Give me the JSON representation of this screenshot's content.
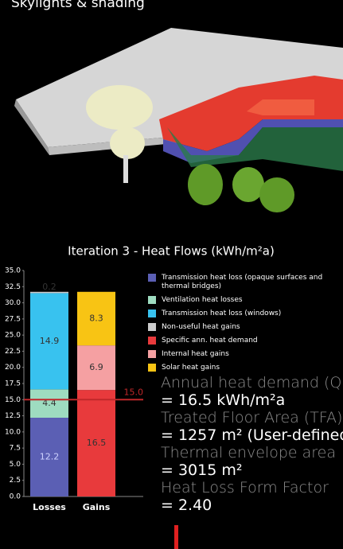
{
  "header": {
    "title": "Skylights & shading"
  },
  "chart_data": {
    "type": "stacked-bar",
    "title": "Iteration 3 - Heat Flows (kWh/m²a)",
    "categories": [
      "Losses",
      "Gains"
    ],
    "series": [
      {
        "name": "Transmission heat loss  (opaque surfaces and thermal bridges)",
        "color": "#5b5fb4",
        "values": [
          12.2,
          null
        ]
      },
      {
        "name": "Ventilation heat losses",
        "color": "#9edcc0",
        "values": [
          4.4,
          null
        ]
      },
      {
        "name": "Transmission heat loss  (windows)",
        "color": "#38c2ef",
        "values": [
          14.9,
          null
        ]
      },
      {
        "name": "Non-useful heat gains",
        "color": "#cccccc",
        "values": [
          0.2,
          null
        ]
      },
      {
        "name": "Specific ann. heat demand",
        "color": "#e83a3c",
        "values": [
          null,
          16.5
        ]
      },
      {
        "name": "Internal heat gains",
        "color": "#f5a0a2",
        "values": [
          null,
          6.9
        ]
      },
      {
        "name": "Solar heat gains",
        "color": "#f8c414",
        "values": [
          null,
          8.3
        ]
      }
    ],
    "threshold": {
      "value": 15,
      "label": "15.0",
      "color": "#c0282a"
    },
    "ylim": [
      0,
      35
    ],
    "yticks": [
      {
        "value": 0,
        "label": "0.0"
      },
      {
        "value": 2.5,
        "label": "2.5"
      },
      {
        "value": 5,
        "label": "5.0"
      },
      {
        "value": 7.5,
        "label": "7.5"
      },
      {
        "value": 10,
        "label": "10.0"
      },
      {
        "value": 12.5,
        "label": "12.5"
      },
      {
        "value": 15,
        "label": "15.0"
      },
      {
        "value": 17.5,
        "label": "17.5"
      },
      {
        "value": 20,
        "label": "20.0"
      },
      {
        "value": 22.5,
        "label": "22.5"
      },
      {
        "value": 25,
        "label": "25.0"
      },
      {
        "value": 27.5,
        "label": "27.5"
      },
      {
        "value": 30,
        "label": "30.0"
      },
      {
        "value": 32.5,
        "label": "32.5"
      },
      {
        "value": 35,
        "label": "35.0"
      }
    ],
    "grid": false
  },
  "info": [
    {
      "label": "Annual heat demand (QH)",
      "value": "= 16.5 kWh/m²a"
    },
    {
      "label": "Treated Floor Area (TFA)",
      "value": "= 1257 m² (User-defined)"
    },
    {
      "label": "Thermal envelope area",
      "value": "= 3015 m²"
    },
    {
      "label": "Heat Loss Form Factor",
      "value": "= 2.40"
    }
  ]
}
